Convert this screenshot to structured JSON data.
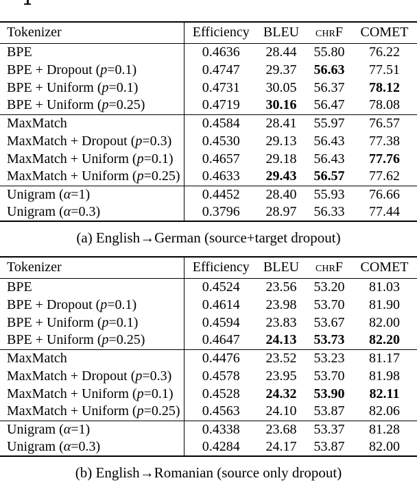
{
  "tables": [
    {
      "caption": "(a) English→German (source+target dropout)",
      "headers": {
        "tokenizer": "Tokenizer",
        "efficiency": "Efficiency",
        "bleu": "BLEU",
        "chrf": "chrF",
        "comet": "COMET"
      },
      "groups": [
        {
          "rows": [
            {
              "label": "BPE",
              "efficiency": "0.4636",
              "bleu": "28.44",
              "chrf": "55.80",
              "comet": "76.22",
              "bold": []
            },
            {
              "label": "BPE + Dropout (*p*=0.1)",
              "efficiency": "0.4747",
              "bleu": "29.37",
              "chrf": "56.63",
              "comet": "77.51",
              "bold": [
                "chrf"
              ]
            },
            {
              "label": "BPE + Uniform (*p*=0.1)",
              "efficiency": "0.4731",
              "bleu": "30.05",
              "chrf": "56.37",
              "comet": "78.12",
              "bold": [
                "comet"
              ]
            },
            {
              "label": "BPE + Uniform (*p*=0.25)",
              "efficiency": "0.4719",
              "bleu": "30.16",
              "chrf": "56.47",
              "comet": "78.08",
              "bold": [
                "bleu"
              ]
            }
          ]
        },
        {
          "rows": [
            {
              "label": "MaxMatch",
              "efficiency": "0.4584",
              "bleu": "28.41",
              "chrf": "55.97",
              "comet": "76.57",
              "bold": []
            },
            {
              "label": "MaxMatch + Dropout (*p*=0.3)",
              "efficiency": "0.4530",
              "bleu": "29.13",
              "chrf": "56.43",
              "comet": "77.38",
              "bold": []
            },
            {
              "label": "MaxMatch + Uniform (*p*=0.1)",
              "efficiency": "0.4657",
              "bleu": "29.18",
              "chrf": "56.43",
              "comet": "77.76",
              "bold": [
                "comet"
              ]
            },
            {
              "label": "MaxMatch + Uniform (*p*=0.25)",
              "efficiency": "0.4633",
              "bleu": "29.43",
              "chrf": "56.57",
              "comet": "77.62",
              "bold": [
                "bleu",
                "chrf"
              ]
            }
          ]
        },
        {
          "rows": [
            {
              "label": "Unigram (*α*=1)",
              "efficiency": "0.4452",
              "bleu": "28.40",
              "chrf": "55.93",
              "comet": "76.66",
              "bold": []
            },
            {
              "label": "Unigram (*α*=0.3)",
              "efficiency": "0.3796",
              "bleu": "28.97",
              "chrf": "56.33",
              "comet": "77.44",
              "bold": []
            }
          ]
        }
      ]
    },
    {
      "caption": "(b) English→Romanian (source only dropout)",
      "headers": {
        "tokenizer": "Tokenizer",
        "efficiency": "Efficiency",
        "bleu": "BLEU",
        "chrf": "chrF",
        "comet": "COMET"
      },
      "groups": [
        {
          "rows": [
            {
              "label": "BPE",
              "efficiency": "0.4524",
              "bleu": "23.56",
              "chrf": "53.20",
              "comet": "81.03",
              "bold": []
            },
            {
              "label": "BPE + Dropout (*p*=0.1)",
              "efficiency": "0.4614",
              "bleu": "23.98",
              "chrf": "53.70",
              "comet": "81.90",
              "bold": []
            },
            {
              "label": "BPE + Uniform (*p*=0.1)",
              "efficiency": "0.4594",
              "bleu": "23.83",
              "chrf": "53.67",
              "comet": "82.00",
              "bold": []
            },
            {
              "label": "BPE + Uniform (*p*=0.25)",
              "efficiency": "0.4647",
              "bleu": "24.13",
              "chrf": "53.73",
              "comet": "82.20",
              "bold": [
                "bleu",
                "chrf",
                "comet"
              ]
            }
          ]
        },
        {
          "rows": [
            {
              "label": "MaxMatch",
              "efficiency": "0.4476",
              "bleu": "23.52",
              "chrf": "53.23",
              "comet": "81.17",
              "bold": []
            },
            {
              "label": "MaxMatch + Dropout (*p*=0.3)",
              "efficiency": "0.4578",
              "bleu": "23.95",
              "chrf": "53.70",
              "comet": "81.98",
              "bold": []
            },
            {
              "label": "MaxMatch + Uniform (*p*=0.1)",
              "efficiency": "0.4528",
              "bleu": "24.32",
              "chrf": "53.90",
              "comet": "82.11",
              "bold": [
                "bleu",
                "chrf",
                "comet"
              ]
            },
            {
              "label": "MaxMatch + Uniform (*p*=0.25)",
              "efficiency": "0.4563",
              "bleu": "24.10",
              "chrf": "53.87",
              "comet": "82.06",
              "bold": []
            }
          ]
        },
        {
          "rows": [
            {
              "label": "Unigram (*α*=1)",
              "efficiency": "0.4338",
              "bleu": "23.68",
              "chrf": "53.37",
              "comet": "81.28",
              "bold": []
            },
            {
              "label": "Unigram (*α*=0.3)",
              "efficiency": "0.4284",
              "bleu": "24.17",
              "chrf": "53.87",
              "comet": "82.00",
              "bold": []
            }
          ]
        }
      ]
    }
  ]
}
